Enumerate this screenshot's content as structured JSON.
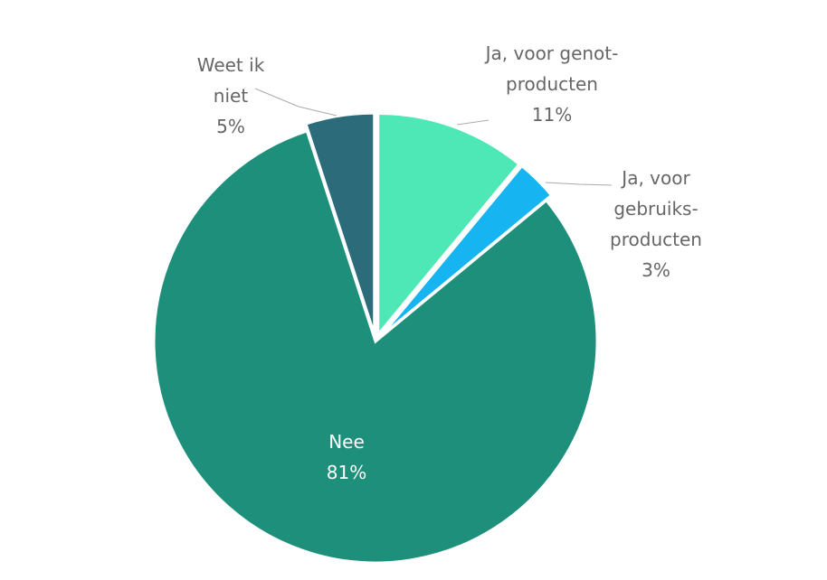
{
  "chart_data": {
    "type": "pie",
    "categories": [
      "Ja, voor genot-producten",
      "Ja, voor gebruiks-producten",
      "Nee",
      "Weet ik niet"
    ],
    "values": [
      11,
      3,
      81,
      5
    ],
    "value_labels": [
      "11%",
      "3%",
      "81%",
      "5%"
    ],
    "colors": [
      "#4de8b5",
      "#16b4f0",
      "#1e8f7a",
      "#2b6b7a"
    ]
  }
}
